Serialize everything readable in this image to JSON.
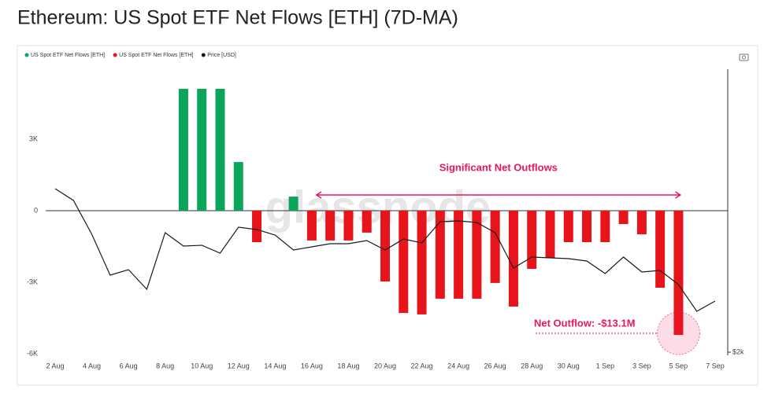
{
  "chart_data": {
    "type": "bar",
    "title": "Ethereum: US Spot ETF Net Flows [ETH] (7D-MA)",
    "watermark": "glassnode",
    "categories": [
      "2 Aug",
      null,
      "4 Aug",
      null,
      "6 Aug",
      null,
      "8 Aug",
      null,
      "10 Aug",
      null,
      "12 Aug",
      null,
      "14 Aug",
      null,
      "16 Aug",
      null,
      "18 Aug",
      null,
      "20 Aug",
      null,
      "22 Aug",
      null,
      "24 Aug",
      null,
      "26 Aug",
      null,
      "28 Aug",
      null,
      "30 Aug",
      null,
      "1 Sep",
      null,
      "3 Sep",
      null,
      "5 Sep",
      null,
      "7 Sep"
    ],
    "series": [
      {
        "name": "US Spot ETF Net Flows [ETH]",
        "color": "#0aa55a",
        "values": [
          null,
          null,
          null,
          null,
          null,
          null,
          null,
          5110,
          5110,
          5110,
          2040,
          null,
          null,
          590,
          null,
          null,
          null,
          null,
          null,
          null,
          null,
          null,
          null,
          null,
          null,
          null,
          null,
          null,
          null,
          null,
          null,
          null,
          null,
          null,
          null,
          null,
          null
        ]
      },
      {
        "name": "US Spot ETF Net Flows [ETH]",
        "color": "#e8141b",
        "values": [
          null,
          null,
          null,
          null,
          null,
          null,
          null,
          null,
          null,
          null,
          null,
          -1320,
          null,
          null,
          -1250,
          -1250,
          -1250,
          -920,
          -2970,
          -4290,
          -4350,
          -3690,
          -3690,
          -3690,
          -3030,
          -4020,
          -2440,
          -1980,
          -1320,
          -1320,
          -1320,
          -560,
          -990,
          -3230,
          -5210,
          null,
          null
        ]
      },
      {
        "name": "Price [USD]",
        "color": "#1a1a1a",
        "axis": "y2",
        "type": "line",
        "values": [
          5363,
          5121,
          4426,
          3585,
          3698,
          3294,
          4458,
          4183,
          4199,
          4037,
          4571,
          4523,
          4409,
          4102,
          4167,
          4231,
          4231,
          4296,
          4102,
          4328,
          4248,
          4684,
          4700,
          4668,
          4458,
          3730,
          3957,
          3940,
          3924,
          3876,
          3617,
          3957,
          3649,
          3682,
          3391,
          2841,
          3051
        ]
      }
    ],
    "ylim": [
      -6000,
      6000
    ],
    "yticks": [
      {
        "value": -6000,
        "label": "-6K"
      },
      {
        "value": -3000,
        "label": "-3K"
      },
      0,
      {
        "value": 3000,
        "label": "3K"
      }
    ],
    "y2lim": [
      1968,
      7853
    ],
    "y2ticks": [
      {
        "value": 2000,
        "label": "$2k"
      }
    ],
    "legend": "top-left",
    "annotations": [
      {
        "text": "Significant Net Outflows",
        "color": "#e8175d"
      },
      {
        "text": "Net Outflow: -$13.1M",
        "color": "#e8175d"
      }
    ]
  }
}
